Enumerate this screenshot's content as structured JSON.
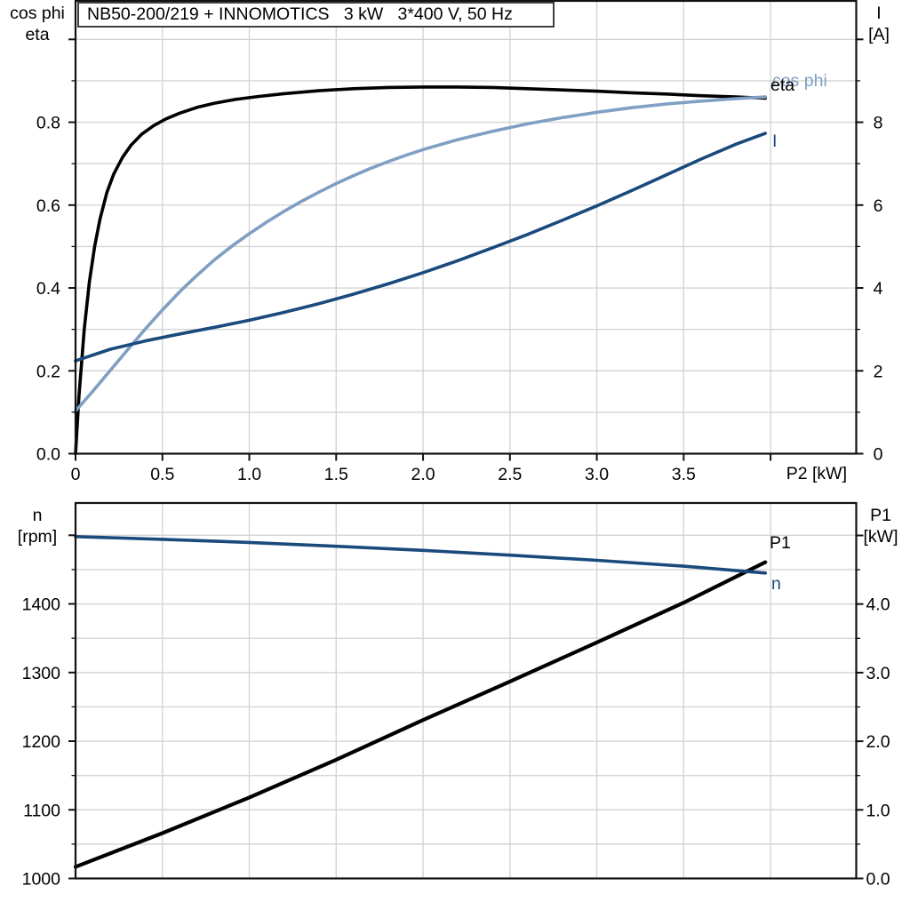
{
  "title": "NB50-200/219 + INNOMOTICS   3 kW   3*400 V, 50 Hz",
  "colors": {
    "black": "#000000",
    "dark_blue": "#1a4a7c",
    "light_blue": "#7f9fc3",
    "grid": "#d4d4d4",
    "frame": "#111111"
  },
  "chart_data": [
    {
      "type": "line",
      "id": "top-efficiency-current",
      "x_axis": {
        "label": "P2 [kW]",
        "range": [
          0,
          4.493
        ],
        "draw_ticks": true,
        "majors": [
          {
            "v": 0,
            "l": "0"
          },
          {
            "v": 0.5,
            "l": "0.5"
          },
          {
            "v": 1,
            "l": "1.0"
          },
          {
            "v": 1.5,
            "l": "1.5"
          },
          {
            "v": 2,
            "l": "2.0"
          },
          {
            "v": 2.5,
            "l": "2.5"
          },
          {
            "v": 3,
            "l": "3.0"
          },
          {
            "v": 3.5,
            "l": "3.5"
          },
          {
            "v": 4,
            "l": ""
          }
        ],
        "minors": []
      },
      "left_axis": {
        "title1": "cos phi",
        "title2": "eta",
        "range": [
          0,
          1.0929
        ],
        "majors": [
          {
            "v": 0,
            "l": "0.0"
          },
          {
            "v": 0.2,
            "l": "0.2"
          },
          {
            "v": 0.4,
            "l": "0.4"
          },
          {
            "v": 0.6,
            "l": "0.6"
          },
          {
            "v": 0.8,
            "l": "0.8"
          },
          {
            "v": 1.0,
            "l": ""
          }
        ],
        "minors": [
          0.1,
          0.3,
          0.5,
          0.7,
          0.9
        ]
      },
      "right_axis": {
        "title1": "I",
        "title2": "[A]",
        "range": [
          0,
          10.929
        ],
        "majors": [
          {
            "v": 0,
            "l": "0"
          },
          {
            "v": 2,
            "l": "2"
          },
          {
            "v": 4,
            "l": "4"
          },
          {
            "v": 6,
            "l": "6"
          },
          {
            "v": 8,
            "l": "8"
          },
          {
            "v": 10,
            "l": ""
          }
        ],
        "minors": [
          1,
          3,
          5,
          7,
          9
        ]
      },
      "series": [
        {
          "id": "eta",
          "name": "eta",
          "axis": "left",
          "color": "black",
          "width": 3.6,
          "points": [
            [
              0,
              0
            ],
            [
              0.02,
              0.14
            ],
            [
              0.05,
              0.3
            ],
            [
              0.08,
              0.415
            ],
            [
              0.11,
              0.5
            ],
            [
              0.14,
              0.565
            ],
            [
              0.18,
              0.63
            ],
            [
              0.22,
              0.675
            ],
            [
              0.27,
              0.715
            ],
            [
              0.32,
              0.745
            ],
            [
              0.38,
              0.771
            ],
            [
              0.45,
              0.792
            ],
            [
              0.52,
              0.808
            ],
            [
              0.6,
              0.822
            ],
            [
              0.7,
              0.836
            ],
            [
              0.8,
              0.846
            ],
            [
              0.92,
              0.855
            ],
            [
              1.05,
              0.862
            ],
            [
              1.2,
              0.869
            ],
            [
              1.4,
              0.876
            ],
            [
              1.6,
              0.881
            ],
            [
              1.8,
              0.884
            ],
            [
              2.0,
              0.885
            ],
            [
              2.2,
              0.885
            ],
            [
              2.4,
              0.884
            ],
            [
              2.6,
              0.881
            ],
            [
              2.8,
              0.878
            ],
            [
              3.0,
              0.875
            ],
            [
              3.2,
              0.871
            ],
            [
              3.4,
              0.868
            ],
            [
              3.6,
              0.864
            ],
            [
              3.8,
              0.861
            ],
            [
              3.97,
              0.858
            ]
          ]
        },
        {
          "id": "cos-phi",
          "name": "cos phi",
          "axis": "left",
          "color": "light_blue",
          "width": 3.6,
          "points": [
            [
              0,
              0.103
            ],
            [
              0.1,
              0.151
            ],
            [
              0.2,
              0.201
            ],
            [
              0.3,
              0.251
            ],
            [
              0.4,
              0.3
            ],
            [
              0.5,
              0.347
            ],
            [
              0.6,
              0.391
            ],
            [
              0.7,
              0.431
            ],
            [
              0.8,
              0.468
            ],
            [
              0.9,
              0.501
            ],
            [
              1.0,
              0.531
            ],
            [
              1.1,
              0.559
            ],
            [
              1.2,
              0.585
            ],
            [
              1.3,
              0.609
            ],
            [
              1.4,
              0.631
            ],
            [
              1.5,
              0.652
            ],
            [
              1.6,
              0.671
            ],
            [
              1.7,
              0.689
            ],
            [
              1.8,
              0.705
            ],
            [
              1.9,
              0.72
            ],
            [
              2.0,
              0.734
            ],
            [
              2.2,
              0.758
            ],
            [
              2.4,
              0.778
            ],
            [
              2.6,
              0.796
            ],
            [
              2.8,
              0.811
            ],
            [
              3.0,
              0.824
            ],
            [
              3.2,
              0.835
            ],
            [
              3.4,
              0.844
            ],
            [
              3.6,
              0.851
            ],
            [
              3.8,
              0.857
            ],
            [
              3.97,
              0.861
            ]
          ]
        },
        {
          "id": "current",
          "name": "I",
          "axis": "right",
          "color": "dark_blue",
          "width": 3.6,
          "points": [
            [
              0,
              2.24
            ],
            [
              0.2,
              2.52
            ],
            [
              0.4,
              2.72
            ],
            [
              0.6,
              2.89
            ],
            [
              0.8,
              3.05
            ],
            [
              1.0,
              3.22
            ],
            [
              1.2,
              3.41
            ],
            [
              1.4,
              3.62
            ],
            [
              1.6,
              3.85
            ],
            [
              1.8,
              4.1
            ],
            [
              2.0,
              4.37
            ],
            [
              2.2,
              4.66
            ],
            [
              2.4,
              4.97
            ],
            [
              2.6,
              5.29
            ],
            [
              2.8,
              5.63
            ],
            [
              3.0,
              5.98
            ],
            [
              3.2,
              6.35
            ],
            [
              3.4,
              6.73
            ],
            [
              3.6,
              7.11
            ],
            [
              3.8,
              7.47
            ],
            [
              3.97,
              7.73
            ]
          ]
        }
      ]
    },
    {
      "type": "line",
      "id": "bottom-speed-power",
      "x_axis": {
        "label": "",
        "range": [
          0,
          4.493
        ],
        "draw_ticks": false,
        "majors": [
          {
            "v": 0,
            "l": ""
          },
          {
            "v": 0.5,
            "l": ""
          },
          {
            "v": 1,
            "l": ""
          },
          {
            "v": 1.5,
            "l": ""
          },
          {
            "v": 2,
            "l": ""
          },
          {
            "v": 2.5,
            "l": ""
          },
          {
            "v": 3,
            "l": ""
          },
          {
            "v": 3.5,
            "l": ""
          },
          {
            "v": 4,
            "l": ""
          }
        ],
        "minors": []
      },
      "left_axis": {
        "title1": "n",
        "title2": "[rpm]",
        "range": [
          1000,
          1547
        ],
        "majors": [
          {
            "v": 1000,
            "l": "1000"
          },
          {
            "v": 1100,
            "l": "1100"
          },
          {
            "v": 1200,
            "l": "1200"
          },
          {
            "v": 1300,
            "l": "1300"
          },
          {
            "v": 1400,
            "l": "1400"
          },
          {
            "v": 1500,
            "l": ""
          }
        ],
        "minors": [
          1050,
          1150,
          1250,
          1350,
          1450
        ]
      },
      "right_axis": {
        "title1": "P1",
        "title2": "[kW]",
        "range": [
          0,
          5.473
        ],
        "majors": [
          {
            "v": 0,
            "l": "0.0"
          },
          {
            "v": 1,
            "l": "1.0"
          },
          {
            "v": 2,
            "l": "2.0"
          },
          {
            "v": 3,
            "l": "3.0"
          },
          {
            "v": 4,
            "l": "4.0"
          },
          {
            "v": 5,
            "l": ""
          }
        ],
        "minors": [
          0.5,
          1.5,
          2.5,
          3.5,
          4.5
        ]
      },
      "series": [
        {
          "id": "p1",
          "name": "P1",
          "axis": "right",
          "color": "black",
          "width": 4.2,
          "points": [
            [
              0,
              0.17
            ],
            [
              0.5,
              0.66
            ],
            [
              1.0,
              1.18
            ],
            [
              1.5,
              1.73
            ],
            [
              2.0,
              2.31
            ],
            [
              2.5,
              2.87
            ],
            [
              3.0,
              3.44
            ],
            [
              3.5,
              4.02
            ],
            [
              3.97,
              4.61
            ]
          ]
        },
        {
          "id": "n",
          "name": "n",
          "axis": "left",
          "color": "dark_blue",
          "width": 3.6,
          "points": [
            [
              0,
              1498
            ],
            [
              0.5,
              1494
            ],
            [
              1.0,
              1489.5
            ],
            [
              1.5,
              1484
            ],
            [
              2.0,
              1478
            ],
            [
              2.5,
              1471
            ],
            [
              3.0,
              1463.5
            ],
            [
              3.5,
              1455
            ],
            [
              3.97,
              1445
            ]
          ]
        }
      ]
    }
  ]
}
